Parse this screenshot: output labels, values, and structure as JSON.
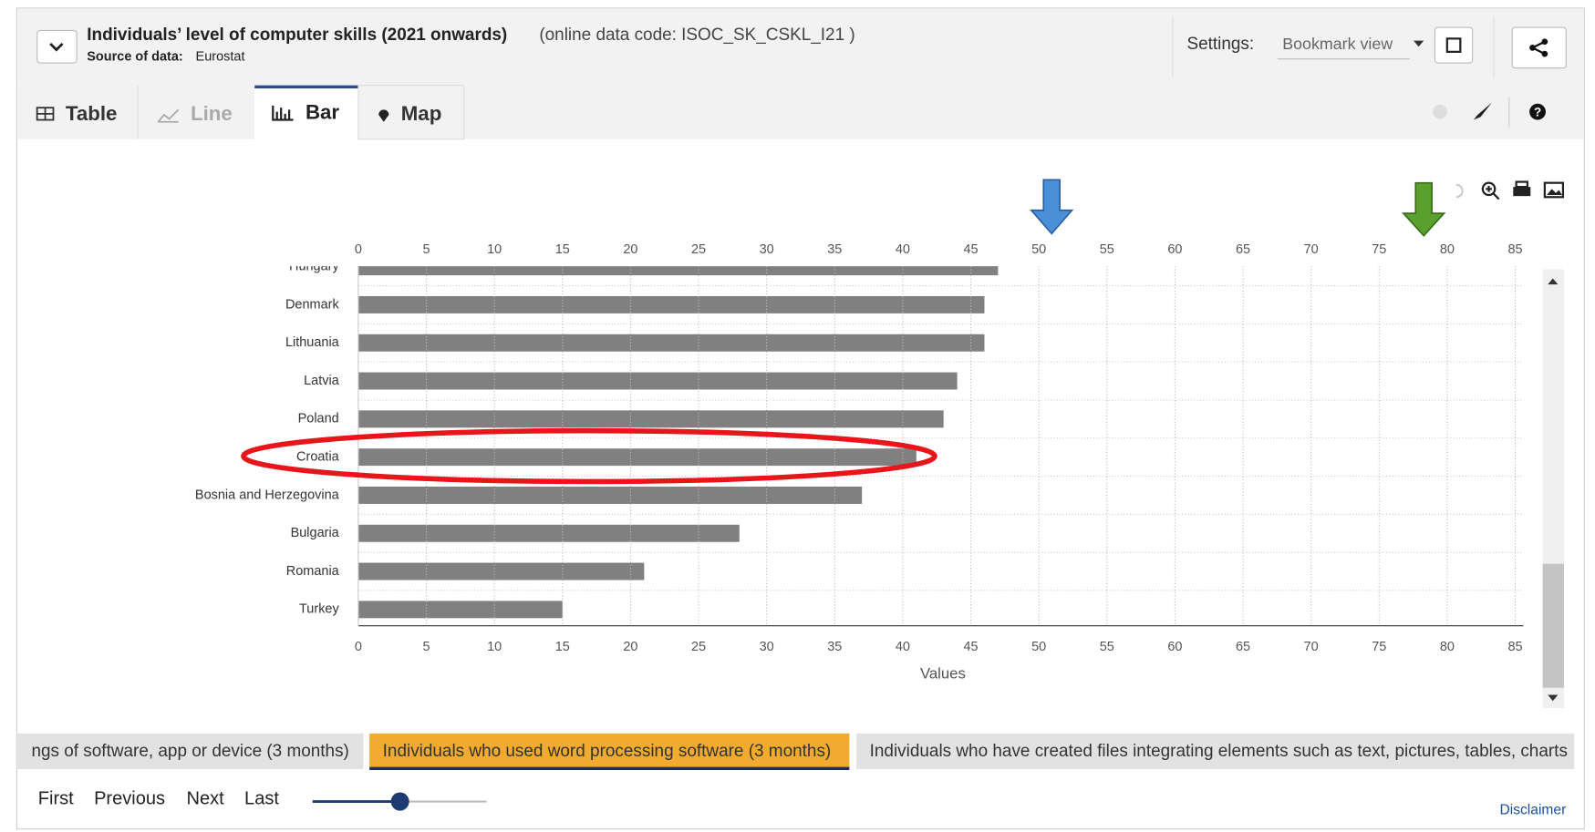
{
  "header": {
    "title": "Individuals’ level of computer skills (2021 onwards)",
    "code": "(online data code: ISOC_SK_CSKL_I21 )",
    "source_label": "Source of data:",
    "source": "Eurostat",
    "settings_label": "Settings:",
    "settings_value": "Bookmark view"
  },
  "tabs": [
    "Table",
    "Line",
    "Bar",
    "Map"
  ],
  "chart_data": {
    "type": "bar",
    "orientation": "horizontal",
    "categories": [
      "Hungary",
      "Denmark",
      "Lithuania",
      "Latvia",
      "Poland",
      "Croatia",
      "Bosnia and Herzegovina",
      "Bulgaria",
      "Romania",
      "Turkey"
    ],
    "values": [
      47,
      46,
      46,
      44,
      43,
      41,
      37,
      28,
      21,
      15
    ],
    "color": "#808080",
    "xlim": [
      0,
      85
    ],
    "xticks": [
      0,
      5,
      10,
      15,
      20,
      25,
      30,
      35,
      40,
      45,
      50,
      55,
      60,
      65,
      70,
      75,
      80,
      85
    ],
    "x_label": "Values",
    "grid": true
  },
  "dataset_tabs": [
    "ngs of software, app or device (3 months)",
    "Individuals who used word processing software (3 months)",
    "Individuals who have created files integrating elements such as text, pictures, tables, charts"
  ],
  "pagination": [
    "First",
    "Previous",
    "Next",
    "Last"
  ],
  "footer": {
    "disclaimer": "Disclaimer"
  }
}
